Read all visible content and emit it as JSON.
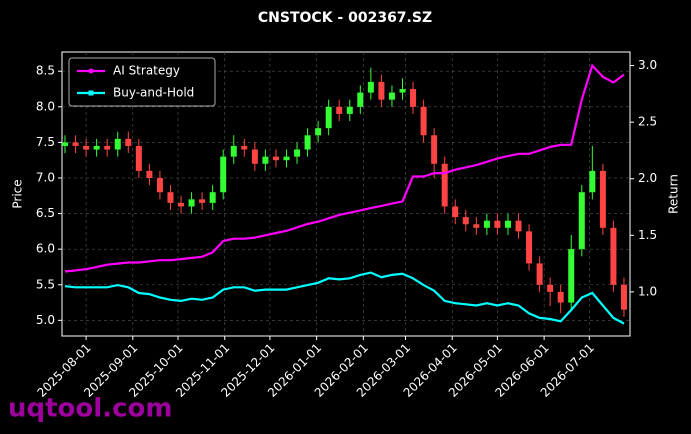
{
  "chart_data": {
    "type": "candlestick",
    "title": "CNSTOCK - 002367.SZ",
    "ylabel": "Price",
    "y2label": "Return",
    "x": [
      "2025-07-18",
      "2025-07-25",
      "2025-08-01",
      "2025-08-08",
      "2025-08-15",
      "2025-08-22",
      "2025-08-29",
      "2025-09-05",
      "2025-09-12",
      "2025-09-19",
      "2025-09-26",
      "2025-10-03",
      "2025-10-10",
      "2025-10-17",
      "2025-10-24",
      "2025-10-31",
      "2025-11-07",
      "2025-11-14",
      "2025-11-21",
      "2025-11-28",
      "2025-12-05",
      "2025-12-12",
      "2025-12-19",
      "2025-12-26",
      "2026-01-02",
      "2026-01-09",
      "2026-01-16",
      "2026-01-23",
      "2026-01-30",
      "2026-02-06",
      "2026-02-13",
      "2026-02-20",
      "2026-02-27",
      "2026-03-06",
      "2026-03-13",
      "2026-03-20",
      "2026-03-27",
      "2026-04-03",
      "2026-04-10",
      "2026-04-17",
      "2026-04-24",
      "2026-05-01",
      "2026-05-08",
      "2026-05-15",
      "2026-05-22",
      "2026-05-29",
      "2026-06-05",
      "2026-06-12",
      "2026-06-19",
      "2026-06-26",
      "2026-07-03",
      "2026-07-10",
      "2026-07-17",
      "2026-07-24"
    ],
    "open": [
      7.45,
      7.5,
      7.45,
      7.4,
      7.45,
      7.4,
      7.55,
      7.45,
      7.1,
      7.0,
      6.8,
      6.65,
      6.6,
      6.7,
      6.65,
      6.8,
      7.3,
      7.45,
      7.4,
      7.2,
      7.3,
      7.25,
      7.3,
      7.4,
      7.6,
      7.7,
      8.0,
      7.9,
      8.0,
      8.2,
      8.35,
      8.1,
      8.2,
      8.25,
      8.0,
      7.6,
      7.2,
      6.6,
      6.45,
      6.35,
      6.3,
      6.4,
      6.3,
      6.4,
      6.25,
      5.8,
      5.5,
      5.4,
      5.25,
      6.0,
      6.8,
      7.1,
      6.3,
      5.5
    ],
    "high": [
      7.6,
      7.6,
      7.55,
      7.55,
      7.55,
      7.65,
      7.65,
      7.55,
      7.2,
      7.1,
      6.9,
      6.75,
      6.8,
      6.8,
      6.9,
      7.4,
      7.6,
      7.55,
      7.5,
      7.4,
      7.4,
      7.4,
      7.5,
      7.7,
      7.8,
      8.1,
      8.1,
      8.1,
      8.3,
      8.55,
      8.45,
      8.3,
      8.4,
      8.35,
      8.1,
      7.7,
      7.3,
      6.7,
      6.55,
      6.45,
      6.5,
      6.5,
      6.5,
      6.5,
      6.35,
      5.9,
      5.6,
      5.5,
      6.2,
      6.9,
      7.45,
      7.2,
      6.4,
      5.6
    ],
    "low": [
      7.35,
      7.35,
      7.3,
      7.3,
      7.3,
      7.3,
      7.35,
      7.0,
      6.9,
      6.7,
      6.55,
      6.5,
      6.5,
      6.55,
      6.55,
      6.7,
      7.2,
      7.3,
      7.1,
      7.1,
      7.15,
      7.15,
      7.2,
      7.3,
      7.5,
      7.6,
      7.8,
      7.8,
      7.9,
      8.1,
      8.0,
      8.0,
      8.1,
      7.9,
      7.5,
      7.0,
      6.5,
      6.35,
      6.25,
      6.2,
      6.2,
      6.2,
      6.2,
      6.15,
      5.7,
      5.4,
      5.2,
      5.1,
      5.15,
      5.9,
      6.7,
      6.2,
      5.4,
      5.05
    ],
    "close": [
      7.5,
      7.45,
      7.4,
      7.45,
      7.4,
      7.55,
      7.45,
      7.1,
      7.0,
      6.8,
      6.65,
      6.6,
      6.7,
      6.65,
      6.8,
      7.3,
      7.45,
      7.4,
      7.2,
      7.3,
      7.25,
      7.3,
      7.4,
      7.6,
      7.7,
      8.0,
      7.9,
      8.0,
      8.2,
      8.35,
      8.1,
      8.2,
      8.25,
      8.0,
      7.6,
      7.2,
      6.6,
      6.45,
      6.35,
      6.3,
      6.4,
      6.3,
      6.4,
      6.25,
      5.8,
      5.5,
      5.4,
      5.25,
      6.0,
      6.8,
      7.1,
      6.3,
      5.5,
      5.15
    ],
    "up_color": "#33ff33",
    "down_color": "#ff4444",
    "series": [
      {
        "name": "AI Strategy",
        "color": "#ff00ff",
        "axis": "y2",
        "values": [
          1.18,
          1.19,
          1.2,
          1.22,
          1.24,
          1.25,
          1.26,
          1.26,
          1.27,
          1.28,
          1.28,
          1.29,
          1.3,
          1.31,
          1.35,
          1.45,
          1.47,
          1.47,
          1.48,
          1.5,
          1.52,
          1.54,
          1.57,
          1.6,
          1.62,
          1.65,
          1.68,
          1.7,
          1.72,
          1.74,
          1.76,
          1.78,
          1.8,
          2.02,
          2.02,
          2.05,
          2.05,
          2.08,
          2.1,
          2.12,
          2.15,
          2.18,
          2.2,
          2.22,
          2.22,
          2.25,
          2.28,
          2.3,
          2.3,
          2.7,
          3.0,
          2.9,
          2.85,
          2.92
        ]
      },
      {
        "name": "Buy-and-Hold",
        "color": "#00ffff",
        "axis": "y2",
        "values": [
          1.05,
          1.04,
          1.04,
          1.04,
          1.04,
          1.06,
          1.04,
          0.99,
          0.98,
          0.95,
          0.93,
          0.92,
          0.94,
          0.93,
          0.95,
          1.02,
          1.04,
          1.04,
          1.01,
          1.02,
          1.02,
          1.02,
          1.04,
          1.06,
          1.08,
          1.12,
          1.11,
          1.12,
          1.15,
          1.17,
          1.13,
          1.15,
          1.16,
          1.12,
          1.06,
          1.01,
          0.92,
          0.9,
          0.89,
          0.88,
          0.9,
          0.88,
          0.9,
          0.88,
          0.81,
          0.77,
          0.76,
          0.74,
          0.84,
          0.95,
          0.99,
          0.88,
          0.77,
          0.72
        ]
      }
    ],
    "xlim": [
      "2025-07-16",
      "2026-07-28"
    ],
    "xticks": [
      "2025-08-01",
      "2025-09-01",
      "2025-10-01",
      "2025-11-01",
      "2025-12-01",
      "2026-01-01",
      "2026-02-01",
      "2026-03-01",
      "2026-04-01",
      "2026-05-01",
      "2026-06-01",
      "2026-07-01"
    ],
    "ylim": [
      4.78,
      8.77
    ],
    "yticks": [
      {
        "value": 5,
        "label": "5.0"
      },
      {
        "value": 5.5,
        "label": "5.5"
      },
      {
        "value": 6,
        "label": "6.0"
      },
      {
        "value": 6.5,
        "label": "6.5"
      },
      {
        "value": 7,
        "label": "7.0"
      },
      {
        "value": 7.5,
        "label": "7.5"
      },
      {
        "value": 8,
        "label": "8.0"
      },
      {
        "value": 8.5,
        "label": "8.5"
      }
    ],
    "y2lim": [
      0.61,
      3.12
    ],
    "y2ticks": [
      {
        "value": 1,
        "label": "1.0"
      },
      {
        "value": 1.5,
        "label": "1.5"
      },
      {
        "value": 2,
        "label": "2.0"
      },
      {
        "value": 2.5,
        "label": "2.5"
      },
      {
        "value": 3,
        "label": "3.0"
      }
    ],
    "grid": true,
    "legend": "upper left"
  },
  "watermark": "uqtool.com"
}
